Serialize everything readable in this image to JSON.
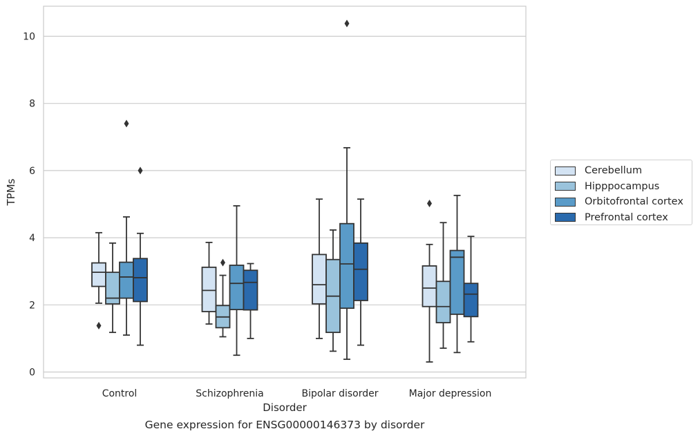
{
  "chart_data": {
    "type": "box",
    "caption": "Gene expression for ENSG00000146373 by disorder",
    "xlabel": "Disorder",
    "ylabel": "TPMs",
    "ylim": [
      -0.2,
      10.9
    ],
    "yticks": [
      0,
      2,
      4,
      6,
      8,
      10
    ],
    "grid": "horizontal",
    "legend_position": "right",
    "categories": [
      "Control",
      "Schizophrenia",
      "Bipolar disorder",
      "Major depression"
    ],
    "series": [
      {
        "name": "Cerebellum",
        "color": "#d3e3f3",
        "boxes": [
          {
            "whislo": 2.05,
            "q1": 2.55,
            "med": 2.97,
            "q3": 3.25,
            "whishi": 4.15,
            "fliers": [
              1.38
            ]
          },
          {
            "whislo": 1.43,
            "q1": 1.8,
            "med": 2.43,
            "q3": 3.12,
            "whishi": 3.86,
            "fliers": []
          },
          {
            "whislo": 1.0,
            "q1": 2.03,
            "med": 2.6,
            "q3": 3.5,
            "whishi": 5.15,
            "fliers": []
          },
          {
            "whislo": 0.3,
            "q1": 1.95,
            "med": 2.5,
            "q3": 3.16,
            "whishi": 3.8,
            "fliers": [
              5.02
            ]
          }
        ]
      },
      {
        "name": "Hipppocampus",
        "color": "#9ac3dc",
        "boxes": [
          {
            "whislo": 1.18,
            "q1": 2.03,
            "med": 2.2,
            "q3": 2.97,
            "whishi": 3.84,
            "fliers": []
          },
          {
            "whislo": 1.05,
            "q1": 1.32,
            "med": 1.64,
            "q3": 1.98,
            "whishi": 2.88,
            "fliers": [
              3.26
            ]
          },
          {
            "whislo": 0.62,
            "q1": 1.18,
            "med": 2.26,
            "q3": 3.35,
            "whishi": 4.23,
            "fliers": []
          },
          {
            "whislo": 0.71,
            "q1": 1.47,
            "med": 1.95,
            "q3": 2.7,
            "whishi": 4.45,
            "fliers": []
          }
        ]
      },
      {
        "name": "Orbitofrontal cortex",
        "color": "#5a9bc8",
        "boxes": [
          {
            "whislo": 1.1,
            "q1": 2.2,
            "med": 2.83,
            "q3": 3.27,
            "whishi": 4.62,
            "fliers": [
              7.4
            ]
          },
          {
            "whislo": 0.5,
            "q1": 1.86,
            "med": 2.64,
            "q3": 3.18,
            "whishi": 4.95,
            "fliers": []
          },
          {
            "whislo": 0.38,
            "q1": 1.9,
            "med": 3.22,
            "q3": 4.42,
            "whishi": 6.68,
            "fliers": [
              10.38
            ]
          },
          {
            "whislo": 0.58,
            "q1": 1.72,
            "med": 3.42,
            "q3": 3.62,
            "whishi": 5.26,
            "fliers": []
          }
        ]
      },
      {
        "name": "Prefrontal cortex",
        "color": "#2a6aad",
        "boxes": [
          {
            "whislo": 0.8,
            "q1": 2.1,
            "med": 2.81,
            "q3": 3.38,
            "whishi": 4.13,
            "fliers": [
              6.0
            ]
          },
          {
            "whislo": 1.0,
            "q1": 1.85,
            "med": 2.67,
            "q3": 3.03,
            "whishi": 3.23,
            "fliers": []
          },
          {
            "whislo": 0.8,
            "q1": 2.13,
            "med": 3.06,
            "q3": 3.84,
            "whishi": 5.15,
            "fliers": []
          },
          {
            "whislo": 0.9,
            "q1": 1.65,
            "med": 2.32,
            "q3": 2.64,
            "whishi": 4.04,
            "fliers": []
          }
        ]
      }
    ]
  }
}
